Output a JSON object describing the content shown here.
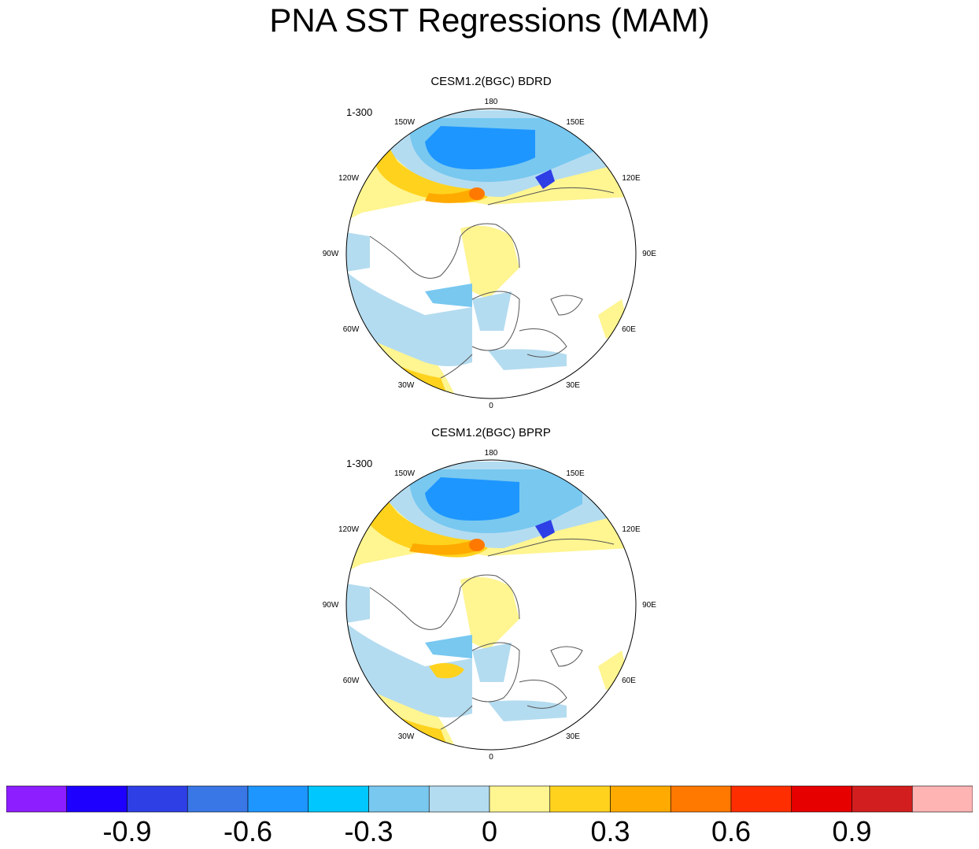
{
  "title": "PNA SST Regressions (MAM)",
  "panels": [
    {
      "title": "CESM1.2(BGC) BDRD",
      "range": "1-300",
      "lon_labels": {
        "top": "180",
        "tl": "150W",
        "tr": "150E",
        "ml_up": "120W",
        "mr_up": "120E",
        "left": "90W",
        "right": "90E",
        "ml_dn": "60W",
        "mr_dn": "60E",
        "bl": "30W",
        "br": "30E",
        "bottom": "0"
      }
    },
    {
      "title": "CESM1.2(BGC) BPRP",
      "range": "1-300",
      "lon_labels": {
        "top": "180",
        "tl": "150W",
        "tr": "150E",
        "ml_up": "120W",
        "mr_up": "120E",
        "left": "90W",
        "right": "90E",
        "ml_dn": "60W",
        "mr_dn": "60E",
        "bl": "30W",
        "br": "30E",
        "bottom": "0"
      }
    }
  ],
  "colorbar": {
    "colors": [
      "#8c1eff",
      "#1e00ff",
      "#2e3fe6",
      "#3a77e6",
      "#1e96ff",
      "#00c8ff",
      "#78c8f0",
      "#b4dcf0",
      "#fff591",
      "#ffd21e",
      "#ffaa00",
      "#ff7800",
      "#ff2e00",
      "#e60000",
      "#d21e1e",
      "#ffb4b4"
    ],
    "labels": [
      "-0.9",
      "-0.6",
      "-0.3",
      "0",
      "0.3",
      "0.6",
      "0.9"
    ]
  }
}
